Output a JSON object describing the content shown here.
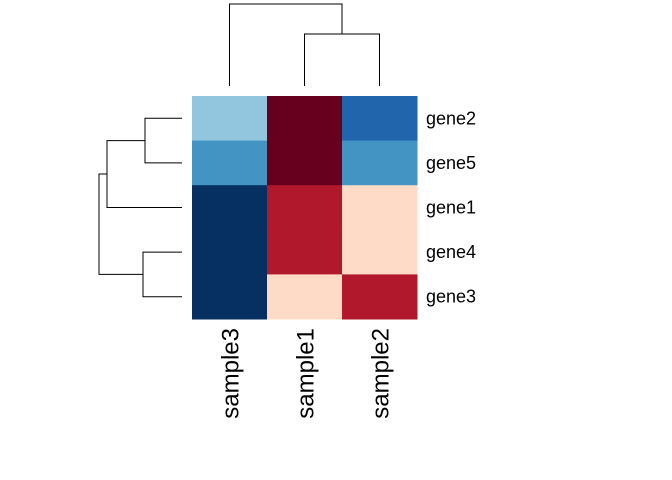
{
  "chart_data": {
    "type": "heatmap",
    "title": "",
    "xlabel": "",
    "ylabel": "",
    "rows": [
      "gene2",
      "gene5",
      "gene1",
      "gene4",
      "gene3"
    ],
    "columns": [
      "sample3",
      "sample1",
      "sample2"
    ],
    "colors": [
      [
        "#92C5DE",
        "#67001F",
        "#2166AC"
      ],
      [
        "#4393C3",
        "#67001F",
        "#4393C3"
      ],
      [
        "#053061",
        "#B2182B",
        "#FDDBC7"
      ],
      [
        "#053061",
        "#B2182B",
        "#FDDBC7"
      ],
      [
        "#053061",
        "#FDDBC7",
        "#B2182B"
      ]
    ],
    "colormap": "RdBu (reversed)",
    "row_dendrogram": true,
    "column_dendrogram": true
  }
}
